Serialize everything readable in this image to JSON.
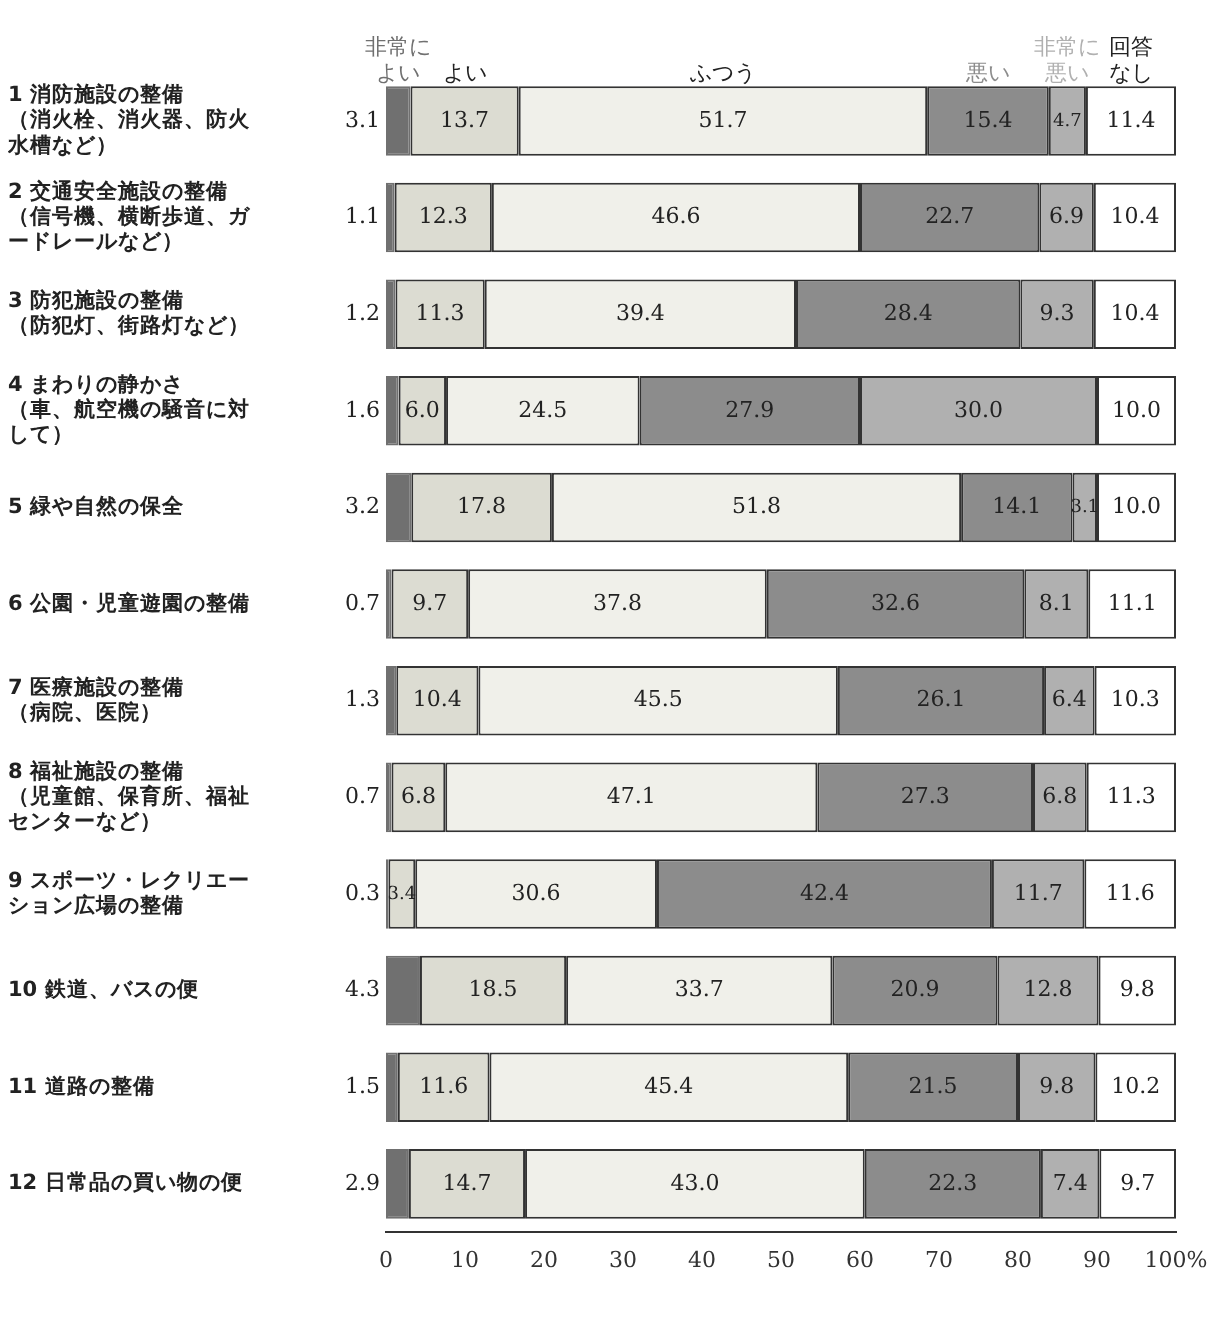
{
  "chart_data": {
    "type": "bar",
    "orientation": "horizontal",
    "stacked": true,
    "grid": false,
    "categories": [
      "1 消防施設の整備（消火栓、消火器、防火水槽など）",
      "2 交通安全施設の整備（信号機、横断歩道、ガードレールなど）",
      "3 防犯施設の整備（防犯灯、街路灯など）",
      "4 まわりの静かさ（車、航空機の騒音に対して）",
      "5 緑や自然の保全",
      "6 公園・児童遊園の整備",
      "7 医療施設の整備（病院、医院）",
      "8 福祉施設の整備（児童館、保育所、福祉センターなど）",
      "9 スポーツ・レクリエーション広場の整備",
      "10 鉄道、バスの便",
      "11 道路の整備",
      "12 日常品の買い物の便"
    ],
    "xlim": [
      0,
      100
    ],
    "xticks": [
      0,
      10,
      20,
      30,
      40,
      50,
      60,
      70,
      80,
      90,
      {
        "value": 100,
        "label": "100%"
      }
    ],
    "series": [
      {
        "name": "非常によい",
        "color": "#707070",
        "values": [
          3.1,
          1.1,
          1.2,
          1.6,
          3.2,
          0.7,
          1.3,
          0.7,
          0.3,
          4.3,
          1.5,
          2.9
        ],
        "value_labels": [
          "3.1",
          "1.1",
          "1.2",
          "1.6",
          "3.2",
          "0.7",
          "1.3",
          "0.7",
          "0.3",
          "4.3",
          "1.5",
          "2.9"
        ]
      },
      {
        "name": "よい",
        "color": "#dcdcd2",
        "values": [
          13.7,
          12.3,
          11.3,
          6.0,
          17.8,
          9.7,
          10.4,
          6.8,
          3.4,
          18.5,
          11.6,
          14.7
        ],
        "value_labels": [
          "13.7",
          "12.3",
          "11.3",
          "6.0",
          "17.8",
          "9.7",
          "10.4",
          "6.8",
          "3.4",
          "18.5",
          "11.6",
          "14.7"
        ]
      },
      {
        "name": "ふつう",
        "color": "#f0f0ea",
        "values": [
          51.7,
          46.6,
          39.4,
          24.5,
          51.8,
          37.8,
          45.5,
          47.1,
          30.6,
          33.7,
          45.4,
          43.0
        ],
        "value_labels": [
          "51.7",
          "46.6",
          "39.4",
          "24.5",
          "51.8",
          "37.8",
          "45.5",
          "47.1",
          "30.6",
          "33.7",
          "45.4",
          "43.0"
        ]
      },
      {
        "name": "悪い",
        "color": "#8c8c8c",
        "values": [
          15.4,
          22.7,
          28.4,
          27.9,
          14.1,
          32.6,
          26.1,
          27.3,
          42.4,
          20.9,
          21.5,
          22.3
        ],
        "value_labels": [
          "15.4",
          "22.7",
          "28.4",
          "27.9",
          "14.1",
          "32.6",
          "26.1",
          "27.3",
          "42.4",
          "20.9",
          "21.5",
          "22.3"
        ]
      },
      {
        "name": "非常に悪い",
        "color": "#b0b0b0",
        "values": [
          4.7,
          6.9,
          9.3,
          30.0,
          3.1,
          8.1,
          6.4,
          6.8,
          11.7,
          12.8,
          9.8,
          7.4
        ],
        "value_labels": [
          "4.7",
          "6.9",
          "9.3",
          "30.0",
          "3.1",
          "8.1",
          "6.4",
          "6.8",
          "11.7",
          "12.8",
          "9.8",
          "7.4"
        ]
      },
      {
        "name": "回答なし",
        "color": "#ffffff",
        "values": [
          11.4,
          10.4,
          10.4,
          10.0,
          10.0,
          11.1,
          10.3,
          11.3,
          11.6,
          9.8,
          10.2,
          9.7
        ],
        "value_labels": [
          "11.4",
          "10.4",
          "10.4",
          "10.0",
          "10.0",
          "11.1",
          "10.3",
          "11.3",
          "11.6",
          "9.8",
          "10.2",
          "9.7"
        ]
      }
    ]
  }
}
